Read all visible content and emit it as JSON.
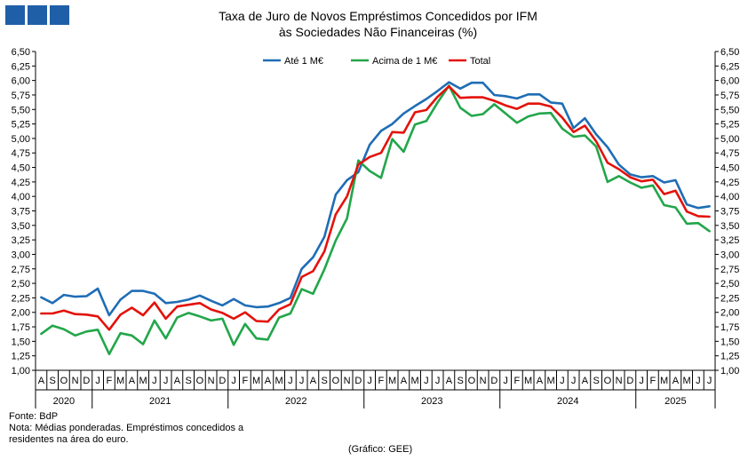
{
  "logo": {
    "color": "#1f5fa8",
    "blocks": 3
  },
  "chart_data": {
    "type": "line",
    "title": "Taxa de Juro de Novos Empréstimos  Concedidos por IFM",
    "subtitle": "às Sociedades Não Financeiras (%)",
    "ylim": [
      1.0,
      6.5
    ],
    "ytick_step": 0.25,
    "y_axis_both_sides": true,
    "grid": false,
    "legend": "top-center",
    "month_labels": [
      "A",
      "S",
      "O",
      "N",
      "D",
      "J",
      "F",
      "M",
      "A",
      "M",
      "J",
      "J",
      "A",
      "S",
      "O",
      "N",
      "D",
      "J",
      "F",
      "M",
      "A",
      "M",
      "J",
      "J",
      "A",
      "S",
      "O",
      "N",
      "D",
      "J",
      "F",
      "M",
      "A",
      "M",
      "J",
      "J",
      "A",
      "S",
      "O",
      "N",
      "D",
      "J",
      "F",
      "M",
      "A",
      "M",
      "J",
      "J",
      "A",
      "S",
      "O",
      "N",
      "D",
      "J",
      "F",
      "M",
      "A",
      "M",
      "J",
      "J"
    ],
    "years": [
      {
        "label": "2020",
        "start": 0,
        "count": 5
      },
      {
        "label": "2021",
        "start": 5,
        "count": 12
      },
      {
        "label": "2022",
        "start": 17,
        "count": 12
      },
      {
        "label": "2023",
        "start": 29,
        "count": 12
      },
      {
        "label": "2024",
        "start": 41,
        "count": 12
      },
      {
        "label": "2025",
        "start": 53,
        "count": 7
      }
    ],
    "series": [
      {
        "name": "Até 1 M€",
        "color": "#1f6db5",
        "values": [
          2.26,
          2.16,
          2.3,
          2.27,
          2.28,
          2.41,
          1.95,
          2.22,
          2.37,
          2.37,
          2.32,
          2.16,
          2.18,
          2.22,
          2.29,
          2.2,
          2.12,
          2.23,
          2.12,
          2.09,
          2.1,
          2.16,
          2.25,
          2.75,
          2.95,
          3.3,
          4.03,
          4.28,
          4.42,
          4.89,
          5.13,
          5.25,
          5.43,
          5.56,
          5.68,
          5.82,
          5.97,
          5.86,
          5.96,
          5.96,
          5.75,
          5.73,
          5.69,
          5.76,
          5.76,
          5.62,
          5.6,
          5.18,
          5.35,
          5.07,
          4.85,
          4.55,
          4.38,
          4.33,
          4.35,
          4.24,
          4.28,
          3.86,
          3.8,
          3.83
        ]
      },
      {
        "name": "Acima de 1 M€",
        "color": "#22a64a",
        "values": [
          1.63,
          1.77,
          1.71,
          1.6,
          1.67,
          1.7,
          1.28,
          1.64,
          1.6,
          1.45,
          1.86,
          1.55,
          1.91,
          1.99,
          1.93,
          1.86,
          1.89,
          1.44,
          1.8,
          1.55,
          1.53,
          1.91,
          1.98,
          2.4,
          2.32,
          2.74,
          3.24,
          3.62,
          4.62,
          4.44,
          4.32,
          4.99,
          4.77,
          5.24,
          5.3,
          5.62,
          5.91,
          5.53,
          5.39,
          5.42,
          5.59,
          5.43,
          5.27,
          5.38,
          5.43,
          5.44,
          5.17,
          5.03,
          5.05,
          4.86,
          4.25,
          4.35,
          4.24,
          4.15,
          4.19,
          3.85,
          3.81,
          3.53,
          3.54,
          3.4
        ]
      },
      {
        "name": "Total",
        "color": "#e3120b",
        "values": [
          1.98,
          1.98,
          2.03,
          1.97,
          1.96,
          1.93,
          1.7,
          1.96,
          2.08,
          1.95,
          2.17,
          1.89,
          2.1,
          2.13,
          2.16,
          2.05,
          1.99,
          1.89,
          2.0,
          1.85,
          1.84,
          2.05,
          2.14,
          2.61,
          2.71,
          3.05,
          3.69,
          4.0,
          4.55,
          4.68,
          4.75,
          5.11,
          5.1,
          5.45,
          5.49,
          5.72,
          5.9,
          5.7,
          5.71,
          5.71,
          5.65,
          5.57,
          5.51,
          5.6,
          5.6,
          5.55,
          5.36,
          5.11,
          5.22,
          4.95,
          4.58,
          4.47,
          4.33,
          4.26,
          4.29,
          4.04,
          4.1,
          3.74,
          3.66,
          3.65
        ]
      }
    ]
  },
  "footer": {
    "source": "Fonte: BdP",
    "note": "Nota: Médias ponderadas. Empréstimos concedidos a residentes na área do euro.",
    "credit": "(Gráfico: GEE)"
  }
}
